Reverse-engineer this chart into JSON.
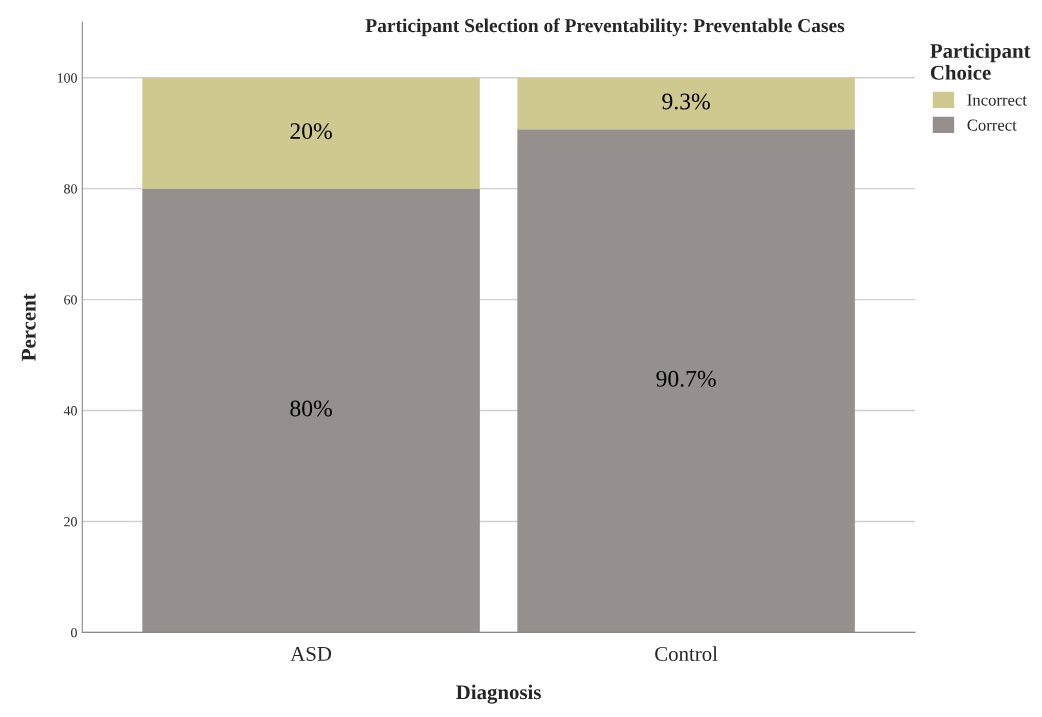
{
  "chart_data": {
    "type": "bar",
    "title": "Participant Selection of Preventability: Preventable Cases",
    "xlabel": "Diagnosis",
    "ylabel": "Percent",
    "legend_title": "Participant Choice",
    "categories": [
      "ASD",
      "Control"
    ],
    "stacked": true,
    "series": [
      {
        "name": "Correct",
        "color": "#958f8e",
        "values": [
          80,
          90.7
        ],
        "value_labels": [
          "80%",
          "90.7%"
        ]
      },
      {
        "name": "Incorrect",
        "color": "#cfc98f",
        "values": [
          20,
          9.3
        ],
        "value_labels": [
          "20%",
          "9.3%"
        ]
      }
    ],
    "ylim": [
      0,
      110
    ],
    "yticks": [
      0,
      20,
      40,
      60,
      80,
      100
    ],
    "grid": "y",
    "legend": "top right"
  }
}
